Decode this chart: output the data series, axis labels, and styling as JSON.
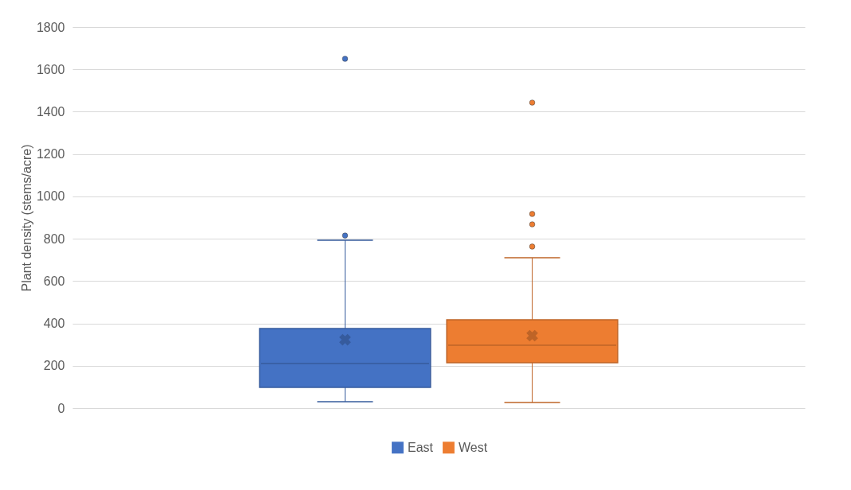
{
  "chart_data": {
    "type": "box",
    "ylabel": "Plant density (stems/acre)",
    "categories": [
      null
    ],
    "ylim": [
      0,
      1800
    ],
    "yticks": [
      0,
      200,
      400,
      600,
      800,
      1000,
      1200,
      1400,
      1600,
      1800
    ],
    "grid": "y",
    "legend": "bottom",
    "tick_labels": "y",
    "series": [
      {
        "name": "East",
        "color": "#4472c4",
        "boxes": [
          {
            "low": 30,
            "q1": 98,
            "median": 210,
            "q3": 376,
            "high": 793,
            "mean": 323,
            "outliers": [
              815,
              1650
            ]
          }
        ]
      },
      {
        "name": "West",
        "color": "#ed7d31",
        "boxes": [
          {
            "low": 26,
            "q1": 214,
            "median": 297,
            "q3": 417,
            "high": 710,
            "mean": 342,
            "outliers": [
              763,
              868,
              917,
              1443
            ]
          }
        ]
      }
    ]
  }
}
